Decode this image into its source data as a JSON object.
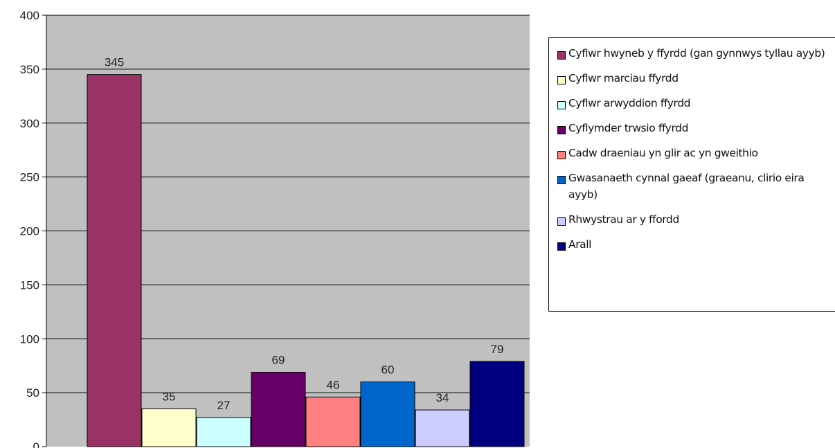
{
  "chart_data": {
    "type": "bar",
    "title": "",
    "xlabel": "",
    "ylabel": "",
    "ylim": [
      0,
      400
    ],
    "yticks": [
      0,
      50,
      100,
      150,
      200,
      250,
      300,
      350,
      400
    ],
    "grid": true,
    "legend_position": "right",
    "plot_background": "#c0c0c0",
    "series": [
      {
        "name": "Cyflwr hwyneb y ffyrdd (gan gynnwys tyllau ayyb)",
        "value": 345,
        "color": "#993366"
      },
      {
        "name": "Cyflwr marciau ffyrdd",
        "value": 35,
        "color": "#ffffcc"
      },
      {
        "name": "Cyflwr arwyddion ffyrdd",
        "value": 27,
        "color": "#ccffff"
      },
      {
        "name": "Cyflymder trwsio ffyrdd",
        "value": 69,
        "color": "#660066"
      },
      {
        "name": "Cadw draeniau yn glir ac yn gweithio",
        "value": 46,
        "color": "#ff8080"
      },
      {
        "name": "Gwasanaeth cynnal gaeaf (graeanu, clirio eira ayyb)",
        "value": 60,
        "color": "#0066cc"
      },
      {
        "name": "Rhwystrau ar y ffordd",
        "value": 34,
        "color": "#ccccff"
      },
      {
        "name": "Arall",
        "value": 79,
        "color": "#000080"
      }
    ]
  }
}
